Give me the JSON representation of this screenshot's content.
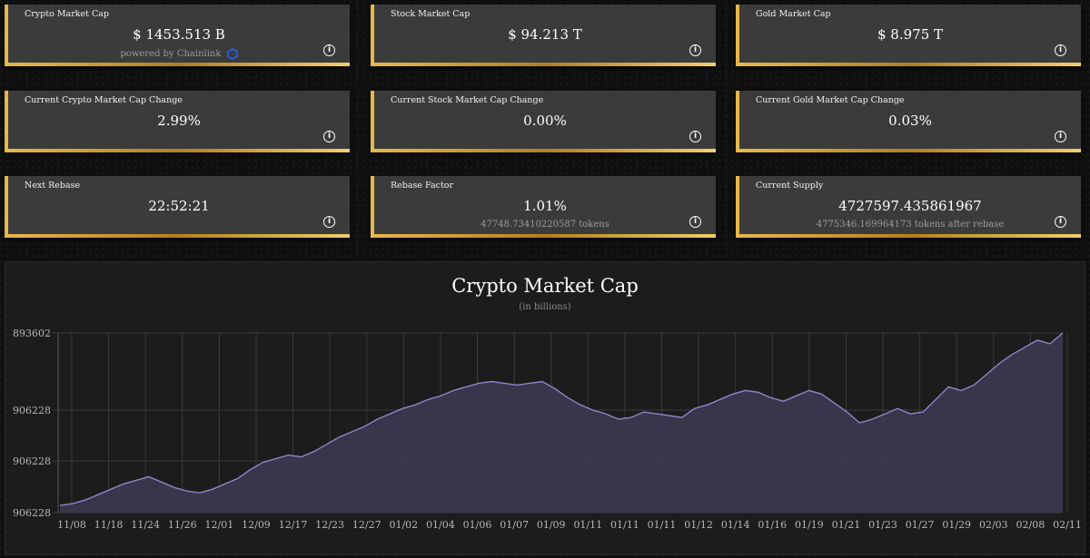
{
  "cards": [
    {
      "label": "Crypto Market Cap",
      "value": "$ 1453.513 B",
      "sub": "powered by Chainlink",
      "chainlink": true
    },
    {
      "label": "Stock Market Cap",
      "value": "$ 94.213 T",
      "sub": ""
    },
    {
      "label": "Gold Market Cap",
      "value": "$ 8.975 T",
      "sub": ""
    },
    {
      "label": "Current Crypto Market Cap Change",
      "value": "2.99%",
      "sub": ""
    },
    {
      "label": "Current Stock Market Cap Change",
      "value": "0.00%",
      "sub": ""
    },
    {
      "label": "Current Gold Market Cap Change",
      "value": "0.03%",
      "sub": ""
    },
    {
      "label": "Next Rebase",
      "value": "22:52:21",
      "sub": ""
    },
    {
      "label": "Rebase Factor",
      "value": "1.01%",
      "sub": "47748.73410220587 tokens"
    },
    {
      "label": "Current Supply",
      "value": "4727597.435861967",
      "sub": "4775346.169964173 tokens after rebase"
    }
  ],
  "info_glyph": "i",
  "colors": {
    "gold": "#c99a2e",
    "card_bg": "#3b3b3b",
    "chainlink": "#2a5ada",
    "series_line": "#8f84c9",
    "series_fill": "#3e3a52"
  },
  "chart_data": {
    "type": "area",
    "title": "Crypto Market Cap",
    "subtitle": "(in billions)",
    "y_tick_labels": [
      "893602",
      "906228",
      "906228",
      "906228"
    ],
    "x_tick_labels": [
      "11/08",
      "11/18",
      "11/24",
      "11/26",
      "12/01",
      "12/09",
      "12/17",
      "12/23",
      "12/27",
      "01/02",
      "01/04",
      "01/06",
      "01/07",
      "01/09",
      "01/11",
      "01/11",
      "01/11",
      "01/12",
      "01/14",
      "01/16",
      "01/19",
      "01/21",
      "01/23",
      "01/27",
      "01/29",
      "02/03",
      "02/08",
      "02/11"
    ],
    "grid": true,
    "series": [
      {
        "values": [
          0.04,
          0.05,
          0.07,
          0.1,
          0.13,
          0.16,
          0.18,
          0.2,
          0.17,
          0.14,
          0.12,
          0.11,
          0.13,
          0.16,
          0.19,
          0.24,
          0.28,
          0.3,
          0.32,
          0.31,
          0.34,
          0.38,
          0.42,
          0.45,
          0.48,
          0.52,
          0.55,
          0.58,
          0.6,
          0.63,
          0.65,
          0.68,
          0.7,
          0.72,
          0.73,
          0.72,
          0.71,
          0.72,
          0.73,
          0.69,
          0.64,
          0.6,
          0.57,
          0.55,
          0.52,
          0.53,
          0.56,
          0.55,
          0.54,
          0.53,
          0.58,
          0.6,
          0.63,
          0.66,
          0.68,
          0.67,
          0.64,
          0.62,
          0.65,
          0.68,
          0.66,
          0.61,
          0.56,
          0.5,
          0.52,
          0.55,
          0.58,
          0.55,
          0.56,
          0.63,
          0.7,
          0.68,
          0.71,
          0.77,
          0.83,
          0.88,
          0.92,
          0.96,
          0.94,
          1.0
        ]
      }
    ]
  }
}
